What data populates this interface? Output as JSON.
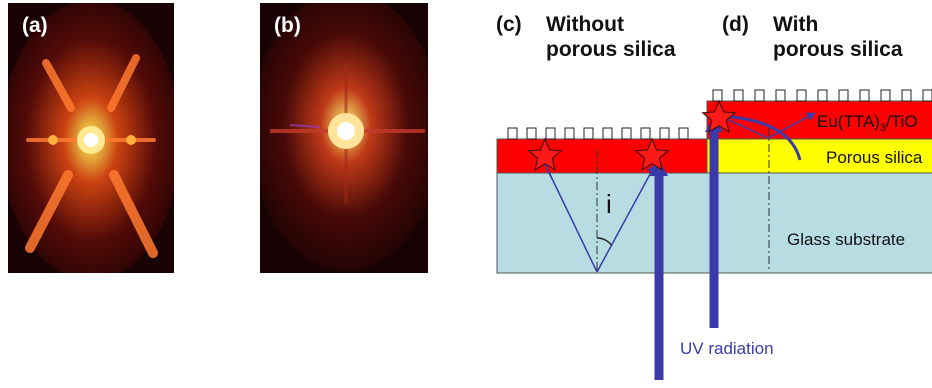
{
  "panels": {
    "a": {
      "label": "(a)"
    },
    "b": {
      "label": "(b)"
    },
    "c": {
      "label": "(c)",
      "title_line1": "Without",
      "title_line2": "porous silica"
    },
    "d": {
      "label": "(d)",
      "title_line1": "With",
      "title_line2": "porous silica"
    }
  },
  "diagram": {
    "layer_film": "Eu(TTA)",
    "layer_film_sub": "3",
    "layer_film_suffix": "/TiO",
    "layer_porous": "Porous silica",
    "layer_glass": "Glass substrate",
    "angle_symbol": "i",
    "radiation_label": "UV radiation"
  },
  "colors": {
    "film": "#ff0000",
    "porous_silica": "#ffff00",
    "glass": "#b7dde3",
    "arrow": "#3a3aa8",
    "uv_text": "#3b3bb0"
  }
}
